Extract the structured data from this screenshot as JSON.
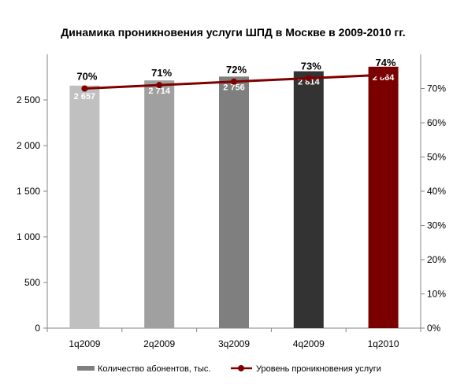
{
  "chart_data": {
    "type": "bar",
    "title": "Динамика проникновения услуги ШПД в Москве в 2009-2010 гг.",
    "categories": [
      "1q2009",
      "2q2009",
      "3q2009",
      "4q2009",
      "1q2010"
    ],
    "series": [
      {
        "name": "Количество абонентов, тыс.",
        "type": "bar",
        "axis": "left",
        "values": [
          2657,
          2714,
          2756,
          2814,
          2864
        ],
        "value_labels": [
          "2 657",
          "2 714",
          "2 756",
          "2 814",
          "2 864"
        ],
        "colors": [
          "#c0c0c0",
          "#a0a0a0",
          "#7f7f7f",
          "#333333",
          "#7a0000"
        ]
      },
      {
        "name": "Уровень проникновения услуги",
        "type": "line",
        "axis": "right",
        "values": [
          70,
          71,
          72,
          73,
          74
        ],
        "value_labels": [
          "70%",
          "71%",
          "72%",
          "73%",
          "74%"
        ],
        "color": "#800000"
      }
    ],
    "y_left": {
      "ylim": [
        0,
        3000
      ],
      "ticks": [
        0,
        500,
        1000,
        1500,
        2000,
        2500
      ],
      "tick_labels": [
        "0",
        "500",
        "1 000",
        "1 500",
        "2 000",
        "2 500"
      ]
    },
    "y_right": {
      "ylim": [
        0,
        80
      ],
      "ticks": [
        0,
        10,
        20,
        30,
        40,
        50,
        60,
        70
      ],
      "tick_labels": [
        "0%",
        "10%",
        "20%",
        "30%",
        "40%",
        "50%",
        "60%",
        "70%"
      ]
    },
    "grid": false,
    "legend_position": "bottom"
  }
}
